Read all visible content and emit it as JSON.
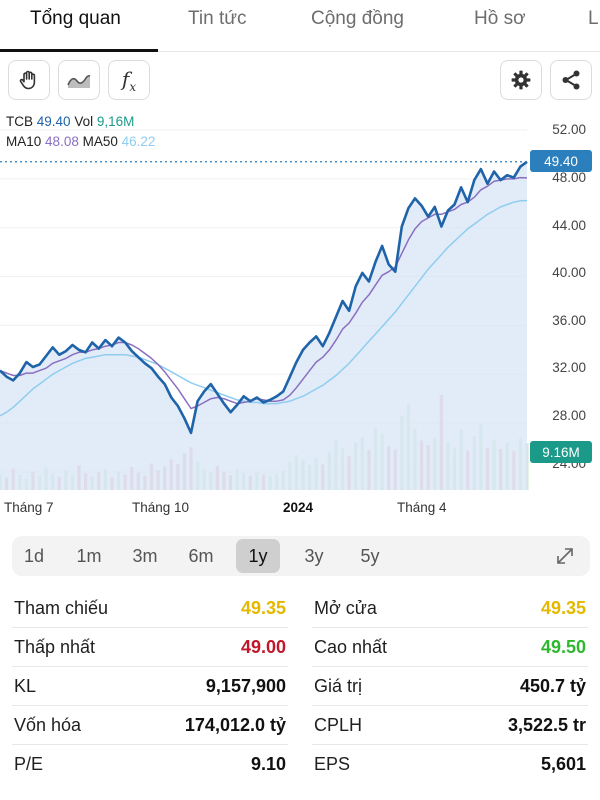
{
  "tabs": [
    {
      "label": "Tổng quan",
      "active": true
    },
    {
      "label": "Tin tức",
      "active": false
    },
    {
      "label": "Cộng đồng",
      "active": false
    },
    {
      "label": "Hồ sơ",
      "active": false
    },
    {
      "label": "L",
      "active": false
    }
  ],
  "toolbar": {
    "left_icons": [
      "hand-icon",
      "line-chart-icon",
      "function-icon"
    ],
    "function_glyph": "f",
    "function_sub": "x",
    "right_icons": [
      "gear-icon",
      "share-icon"
    ]
  },
  "legend": {
    "symbol": "TCB",
    "price": "49.40",
    "vol_label": "Vol",
    "vol": "9,16M",
    "ma10_label": "MA10",
    "ma10": "48.08",
    "ma50_label": "MA50",
    "ma50": "46.22"
  },
  "colors": {
    "price_line": "#1f63a8",
    "price_fill": "#d7e6f5",
    "ma10": "#8a6fc1",
    "ma50": "#8fcdf0",
    "volume": "#f2b8c0",
    "volume_alt": "#cfe8cf",
    "price_tag": "#2c7fbd",
    "vol_tag": "#1b9a8a",
    "up": "#2db82d",
    "down": "#c0182b",
    "ref": "#e5b800"
  },
  "chart_data": {
    "type": "line",
    "y_axis_ticks": [
      "52.00",
      "48.00",
      "44.00",
      "40.00",
      "36.00",
      "32.00",
      "28.00",
      "24.00"
    ],
    "ylim": [
      24,
      52
    ],
    "price_tag": "49.40",
    "volume_tag": "9.16M",
    "x_labels": [
      {
        "label": "Tháng 7",
        "bold": false
      },
      {
        "label": "Tháng 10",
        "bold": false
      },
      {
        "label": "2024",
        "bold": true
      },
      {
        "label": "Tháng 4",
        "bold": false
      }
    ],
    "series": [
      {
        "name": "TCB",
        "values": [
          32.3,
          31.8,
          31.5,
          32.1,
          33.0,
          32.6,
          32.8,
          33.5,
          34.2,
          33.6,
          33.9,
          34.4,
          34.0,
          33.8,
          34.6,
          34.1,
          34.8,
          34.3,
          35.0,
          34.6,
          33.9,
          33.4,
          32.9,
          32.5,
          31.8,
          31.2,
          30.1,
          29.4,
          28.4,
          27.2,
          29.8,
          30.6,
          31.2,
          30.4,
          29.6,
          28.9,
          29.5,
          30.2,
          29.8,
          30.1,
          29.7,
          29.9,
          30.2,
          30.6,
          31.8,
          33.0,
          34.0,
          34.6,
          35.1,
          34.3,
          35.4,
          36.7,
          38.0,
          37.2,
          39.2,
          40.3,
          39.6,
          41.2,
          42.5,
          41.0,
          40.4,
          44.1,
          45.6,
          46.4,
          45.8,
          44.9,
          45.7,
          44.1,
          45.4,
          45.9,
          47.3,
          46.1,
          47.9,
          48.8,
          47.6,
          48.6,
          47.9,
          48.3,
          48.1,
          49.0,
          49.4
        ]
      },
      {
        "name": "MA10",
        "values": [
          32.3,
          32.1,
          31.9,
          31.9,
          32.1,
          32.1,
          32.3,
          32.5,
          32.9,
          33.1,
          33.3,
          33.6,
          33.8,
          33.8,
          34.0,
          34.1,
          34.3,
          34.4,
          34.6,
          34.6,
          34.4,
          34.1,
          33.7,
          33.3,
          32.8,
          32.2,
          31.5,
          30.8,
          30.0,
          29.2,
          29.4,
          29.7,
          30.0,
          30.1,
          30.0,
          29.8,
          29.6,
          29.7,
          29.8,
          30.0,
          29.9,
          29.8,
          29.8,
          29.9,
          30.3,
          30.9,
          31.6,
          32.3,
          33.0,
          33.4,
          34.0,
          34.8,
          35.7,
          36.2,
          37.0,
          37.9,
          38.5,
          39.3,
          40.1,
          40.4,
          40.8,
          41.9,
          43.0,
          43.9,
          44.5,
          44.8,
          45.1,
          45.1,
          45.3,
          45.5,
          45.9,
          46.1,
          46.5,
          47.1,
          47.4,
          47.8,
          47.9,
          48.0,
          48.0,
          48.1,
          48.08
        ]
      },
      {
        "name": "MA50",
        "values": [
          28.6,
          28.9,
          29.3,
          29.8,
          30.3,
          30.8,
          31.2,
          31.6,
          32.0,
          32.3,
          32.6,
          32.9,
          33.1,
          33.3,
          33.4,
          33.5,
          33.6,
          33.6,
          33.6,
          33.6,
          33.5,
          33.4,
          33.2,
          33.0,
          32.8,
          32.5,
          32.2,
          31.9,
          31.6,
          31.3,
          31.1,
          30.9,
          30.7,
          30.5,
          30.3,
          30.1,
          29.9,
          29.8,
          29.7,
          29.7,
          29.6,
          29.6,
          29.6,
          29.7,
          29.8,
          30.0,
          30.2,
          30.5,
          30.8,
          31.1,
          31.5,
          31.9,
          32.4,
          32.9,
          33.5,
          34.1,
          34.7,
          35.3,
          35.9,
          36.5,
          37.1,
          37.8,
          38.5,
          39.2,
          39.9,
          40.6,
          41.2,
          41.8,
          42.4,
          42.9,
          43.4,
          43.9,
          44.3,
          44.7,
          45.1,
          45.4,
          45.7,
          45.9,
          46.1,
          46.2,
          46.22
        ]
      }
    ],
    "volume": [
      3.1,
      2.4,
      4.2,
      3.0,
      2.2,
      3.6,
      2.8,
      4.4,
      3.2,
      2.6,
      3.9,
      2.9,
      4.8,
      3.3,
      2.7,
      3.5,
      4.1,
      2.5,
      3.7,
      3.0,
      4.5,
      3.4,
      2.8,
      5.2,
      3.9,
      4.6,
      6.0,
      5.1,
      7.2,
      8.4,
      5.6,
      4.1,
      3.4,
      4.7,
      3.6,
      2.9,
      4.0,
      3.3,
      2.8,
      3.5,
      3.0,
      2.7,
      3.1,
      3.8,
      5.5,
      6.8,
      5.9,
      4.9,
      6.3,
      5.0,
      7.5,
      9.8,
      8.1,
      6.6,
      9.2,
      10.4,
      7.8,
      12.1,
      11.0,
      8.6,
      7.9,
      14.5,
      16.8,
      12.0,
      9.7,
      8.8,
      10.2,
      18.6,
      9.4,
      8.1,
      11.9,
      7.7,
      10.6,
      12.8,
      8.3,
      9.9,
      8.0,
      9.3,
      7.6,
      10.1,
      9.16
    ]
  },
  "range_buttons": [
    {
      "label": "1d",
      "active": false
    },
    {
      "label": "1m",
      "active": false
    },
    {
      "label": "3m",
      "active": false
    },
    {
      "label": "6m",
      "active": false
    },
    {
      "label": "1y",
      "active": true
    },
    {
      "label": "3y",
      "active": false
    },
    {
      "label": "5y",
      "active": false
    }
  ],
  "stats": {
    "left": [
      {
        "label": "Tham chiếu",
        "value": "49.35",
        "color": "ref"
      },
      {
        "label": "Thấp nhất",
        "value": "49.00",
        "color": "down"
      },
      {
        "label": "KL",
        "value": "9,157,900",
        "color": "default"
      },
      {
        "label": "Vốn hóa",
        "value": "174,012.0 tỷ",
        "color": "default"
      },
      {
        "label": "P/E",
        "value": "9.10",
        "color": "default"
      }
    ],
    "right": [
      {
        "label": "Mở cửa",
        "value": "49.35",
        "color": "ref"
      },
      {
        "label": "Cao nhất",
        "value": "49.50",
        "color": "up"
      },
      {
        "label": "Giá trị",
        "value": "450.7 tỷ",
        "color": "default"
      },
      {
        "label": "CPLH",
        "value": "3,522.5 tr",
        "color": "default"
      },
      {
        "label": "EPS",
        "value": "5,601",
        "color": "default"
      }
    ]
  }
}
